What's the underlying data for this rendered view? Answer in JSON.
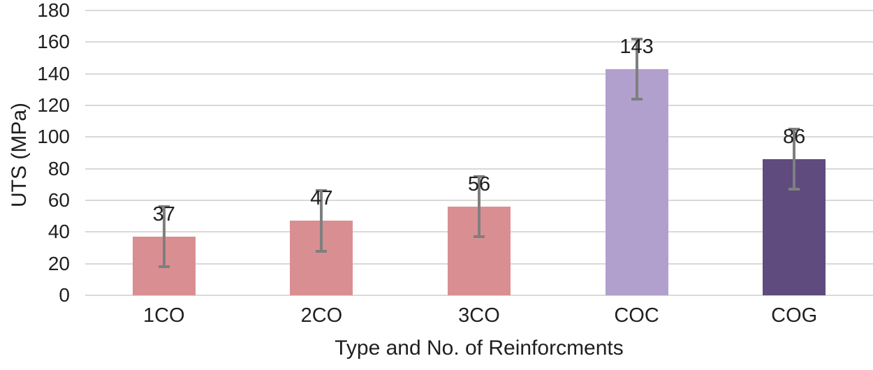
{
  "chart_data": {
    "type": "bar",
    "title": "",
    "categories": [
      "1CO",
      "2CO",
      "3CO",
      "COC",
      "COG"
    ],
    "values": [
      37,
      47,
      56,
      143,
      86
    ],
    "error_plus_minus": [
      19,
      19,
      19,
      19,
      19
    ],
    "data_labels": [
      "37",
      "47",
      "56",
      "143",
      "86"
    ],
    "bar_colors": [
      "#d98f92",
      "#d98f92",
      "#d98f92",
      "#b1a0ce",
      "#5f4b7e"
    ],
    "xlabel": "Type and No. of Reinforcments",
    "ylabel": "UTS (MPa)",
    "ylim": [
      0,
      180
    ],
    "ytick_step": 20,
    "yticks": [
      0,
      20,
      40,
      60,
      80,
      100,
      120,
      140,
      160,
      180
    ],
    "grid": true,
    "legend": "none",
    "gridline_color": "#d9d9d9",
    "error_bar_color": "#7f7f7f",
    "text_color": "#1f1f1f",
    "background_color": "#ffffff"
  }
}
